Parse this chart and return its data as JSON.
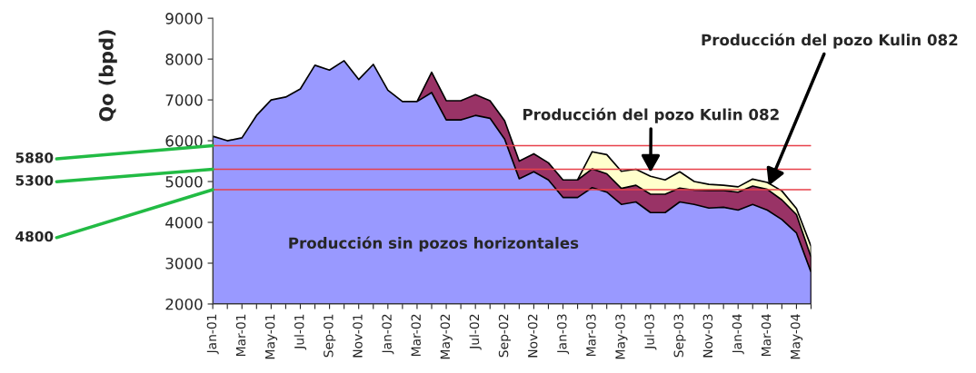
{
  "chart_data": {
    "type": "area",
    "ylabel": "Qo (bpd)",
    "categories": [
      "Jan-01",
      null,
      "Mar-01",
      null,
      "May-01",
      null,
      "Jul-01",
      null,
      "Sep-01",
      null,
      "Nov-01",
      null,
      "Jan-02",
      null,
      "Mar-02",
      null,
      "May-02",
      null,
      "Jul-02",
      null,
      "Sep-02",
      null,
      "Nov-02",
      null,
      "Jan-03",
      null,
      "Mar-03",
      null,
      "May-03",
      null,
      "Jul-03",
      null,
      "Sep-03",
      null,
      "Nov-03",
      null,
      "Jan-04",
      null,
      "Mar-04",
      null,
      "May-04",
      null
    ],
    "series": [
      {
        "name": "Producción sin pozos horizontales",
        "color": "#9999ff",
        "values": [
          6110,
          6000,
          6070,
          6620,
          7000,
          7070,
          7270,
          7850,
          7730,
          7960,
          7500,
          7870,
          7240,
          6960,
          6960,
          7180,
          6510,
          6510,
          6620,
          6550,
          6040,
          5070,
          5240,
          5040,
          4610,
          4610,
          4850,
          4740,
          4440,
          4500,
          4240,
          4240,
          4500,
          4440,
          4350,
          4370,
          4300,
          4440,
          4300,
          4070,
          3740,
          2780
        ]
      },
      {
        "color": "#993366",
        "values": [
          null,
          null,
          null,
          null,
          null,
          null,
          null,
          null,
          null,
          null,
          null,
          null,
          null,
          null,
          6960,
          7680,
          6980,
          6980,
          7130,
          6980,
          6490,
          5500,
          5680,
          5460,
          5040,
          5040,
          5310,
          5190,
          4830,
          4910,
          4690,
          4690,
          4840,
          4790,
          4780,
          4780,
          4740,
          4890,
          4810,
          4550,
          4190,
          3150
        ]
      },
      {
        "color": "#ffffcc",
        "values": [
          null,
          null,
          null,
          null,
          null,
          null,
          null,
          null,
          null,
          null,
          null,
          null,
          null,
          null,
          null,
          null,
          null,
          null,
          null,
          null,
          null,
          null,
          null,
          null,
          null,
          5040,
          5730,
          5660,
          5250,
          5300,
          5130,
          5040,
          5240,
          5000,
          4930,
          4910,
          4870,
          5060,
          4980,
          4770,
          4340,
          3410
        ]
      }
    ],
    "ylim": [
      2000,
      9000
    ],
    "yticks": [
      2000,
      3000,
      4000,
      5000,
      6000,
      7000,
      8000,
      9000
    ],
    "grid": false,
    "legend": false,
    "ref_lines": [
      {
        "axis": "y",
        "value": 5880,
        "label": "5880",
        "color": "#e8404a"
      },
      {
        "axis": "y",
        "value": 5300,
        "label": "5300",
        "color": "#e8404a"
      },
      {
        "axis": "y",
        "value": 4800,
        "label": "4800",
        "color": "#e8404a"
      }
    ],
    "annotations": [
      {
        "text": "Producción del pozo Kulin 082",
        "x": "Jul-03",
        "y": 5130
      },
      {
        "text": "Producción del pozo Kulin 082",
        "x": "Mar-04",
        "y": 4810
      }
    ]
  }
}
